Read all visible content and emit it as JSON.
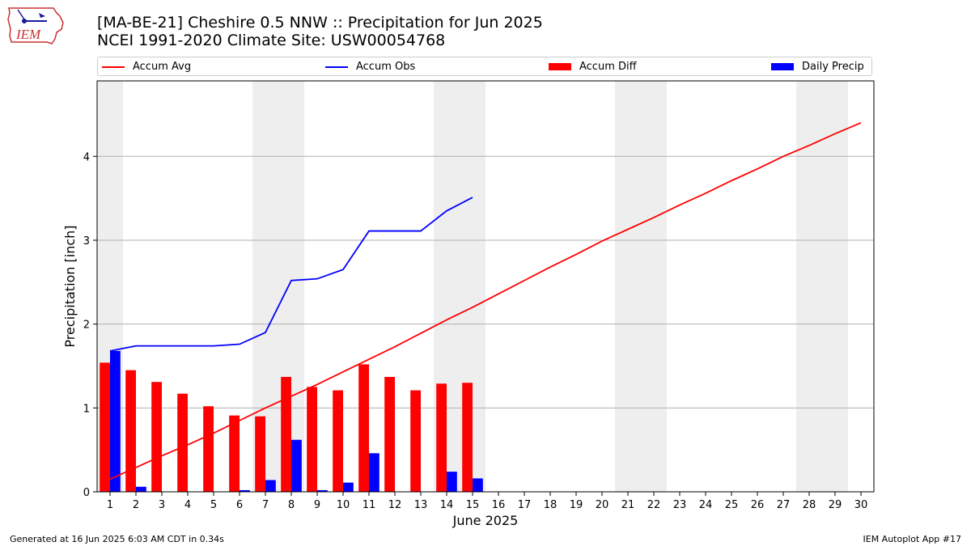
{
  "header": {
    "title_line1": "[MA-BE-21] Cheshire 0.5 NNW :: Precipitation for Jun 2025",
    "title_line2": "NCEI 1991-2020 Climate Site: USW00054768",
    "logo_text": "IEM"
  },
  "footer": {
    "generated": "Generated at 16 Jun 2025 6:03 AM CDT in 0.34s",
    "app": "IEM Autoplot App #17"
  },
  "colors": {
    "accum_avg": "#ff0000",
    "accum_obs": "#0000ff",
    "accum_diff": "#ff0000",
    "daily_precip": "#0000ff",
    "weekend_shade": "#eeeeee",
    "grid": "#b0b0b0"
  },
  "chart_data": {
    "type": "bar",
    "xlabel": "June 2025",
    "ylabel": "Precipitation [inch]",
    "ylim": [
      0,
      4.9
    ],
    "xlim": [
      0.5,
      30.5
    ],
    "yticks": [
      0,
      1,
      2,
      3,
      4
    ],
    "grid": "horizontal",
    "legend_position": "top",
    "x": [
      1,
      2,
      3,
      4,
      5,
      6,
      7,
      8,
      9,
      10,
      11,
      12,
      13,
      14,
      15,
      16,
      17,
      18,
      19,
      20,
      21,
      22,
      23,
      24,
      25,
      26,
      27,
      28,
      29,
      30
    ],
    "weekend_days": [
      1,
      7,
      8,
      14,
      15,
      21,
      22,
      28,
      29
    ],
    "series": [
      {
        "name": "Accum Avg",
        "kind": "line",
        "x": [
          1,
          2,
          3,
          4,
          5,
          6,
          7,
          8,
          9,
          10,
          11,
          12,
          13,
          14,
          15,
          16,
          17,
          18,
          19,
          20,
          21,
          22,
          23,
          24,
          25,
          26,
          27,
          28,
          29,
          30
        ],
        "values": [
          0.15,
          0.29,
          0.43,
          0.56,
          0.7,
          0.85,
          1.0,
          1.14,
          1.28,
          1.43,
          1.58,
          1.73,
          1.89,
          2.05,
          2.2,
          2.36,
          2.52,
          2.68,
          2.83,
          2.99,
          3.13,
          3.27,
          3.42,
          3.56,
          3.71,
          3.85,
          4.0,
          4.13,
          4.27,
          4.4
        ]
      },
      {
        "name": "Accum Obs",
        "kind": "line",
        "x": [
          1,
          2,
          3,
          4,
          5,
          6,
          7,
          8,
          9,
          10,
          11,
          12,
          13,
          14,
          15
        ],
        "values": [
          1.68,
          1.74,
          1.74,
          1.74,
          1.74,
          1.76,
          1.9,
          2.52,
          2.54,
          2.65,
          3.11,
          3.11,
          3.11,
          3.35,
          3.51
        ]
      },
      {
        "name": "Accum Diff",
        "kind": "bar",
        "x": [
          1,
          2,
          3,
          4,
          5,
          6,
          7,
          8,
          9,
          10,
          11,
          12,
          13,
          14,
          15
        ],
        "values": [
          1.54,
          1.45,
          1.31,
          1.17,
          1.02,
          0.91,
          0.9,
          1.37,
          1.25,
          1.21,
          1.52,
          1.37,
          1.21,
          1.29,
          1.3
        ]
      },
      {
        "name": "Daily Precip",
        "kind": "bar",
        "x": [
          1,
          2,
          3,
          4,
          5,
          6,
          7,
          8,
          9,
          10,
          11,
          12,
          13,
          14,
          15
        ],
        "values": [
          1.68,
          0.06,
          0.0,
          0.0,
          0.0,
          0.02,
          0.14,
          0.62,
          0.02,
          0.11,
          0.46,
          0.0,
          0.0,
          0.24,
          0.16
        ]
      }
    ]
  }
}
